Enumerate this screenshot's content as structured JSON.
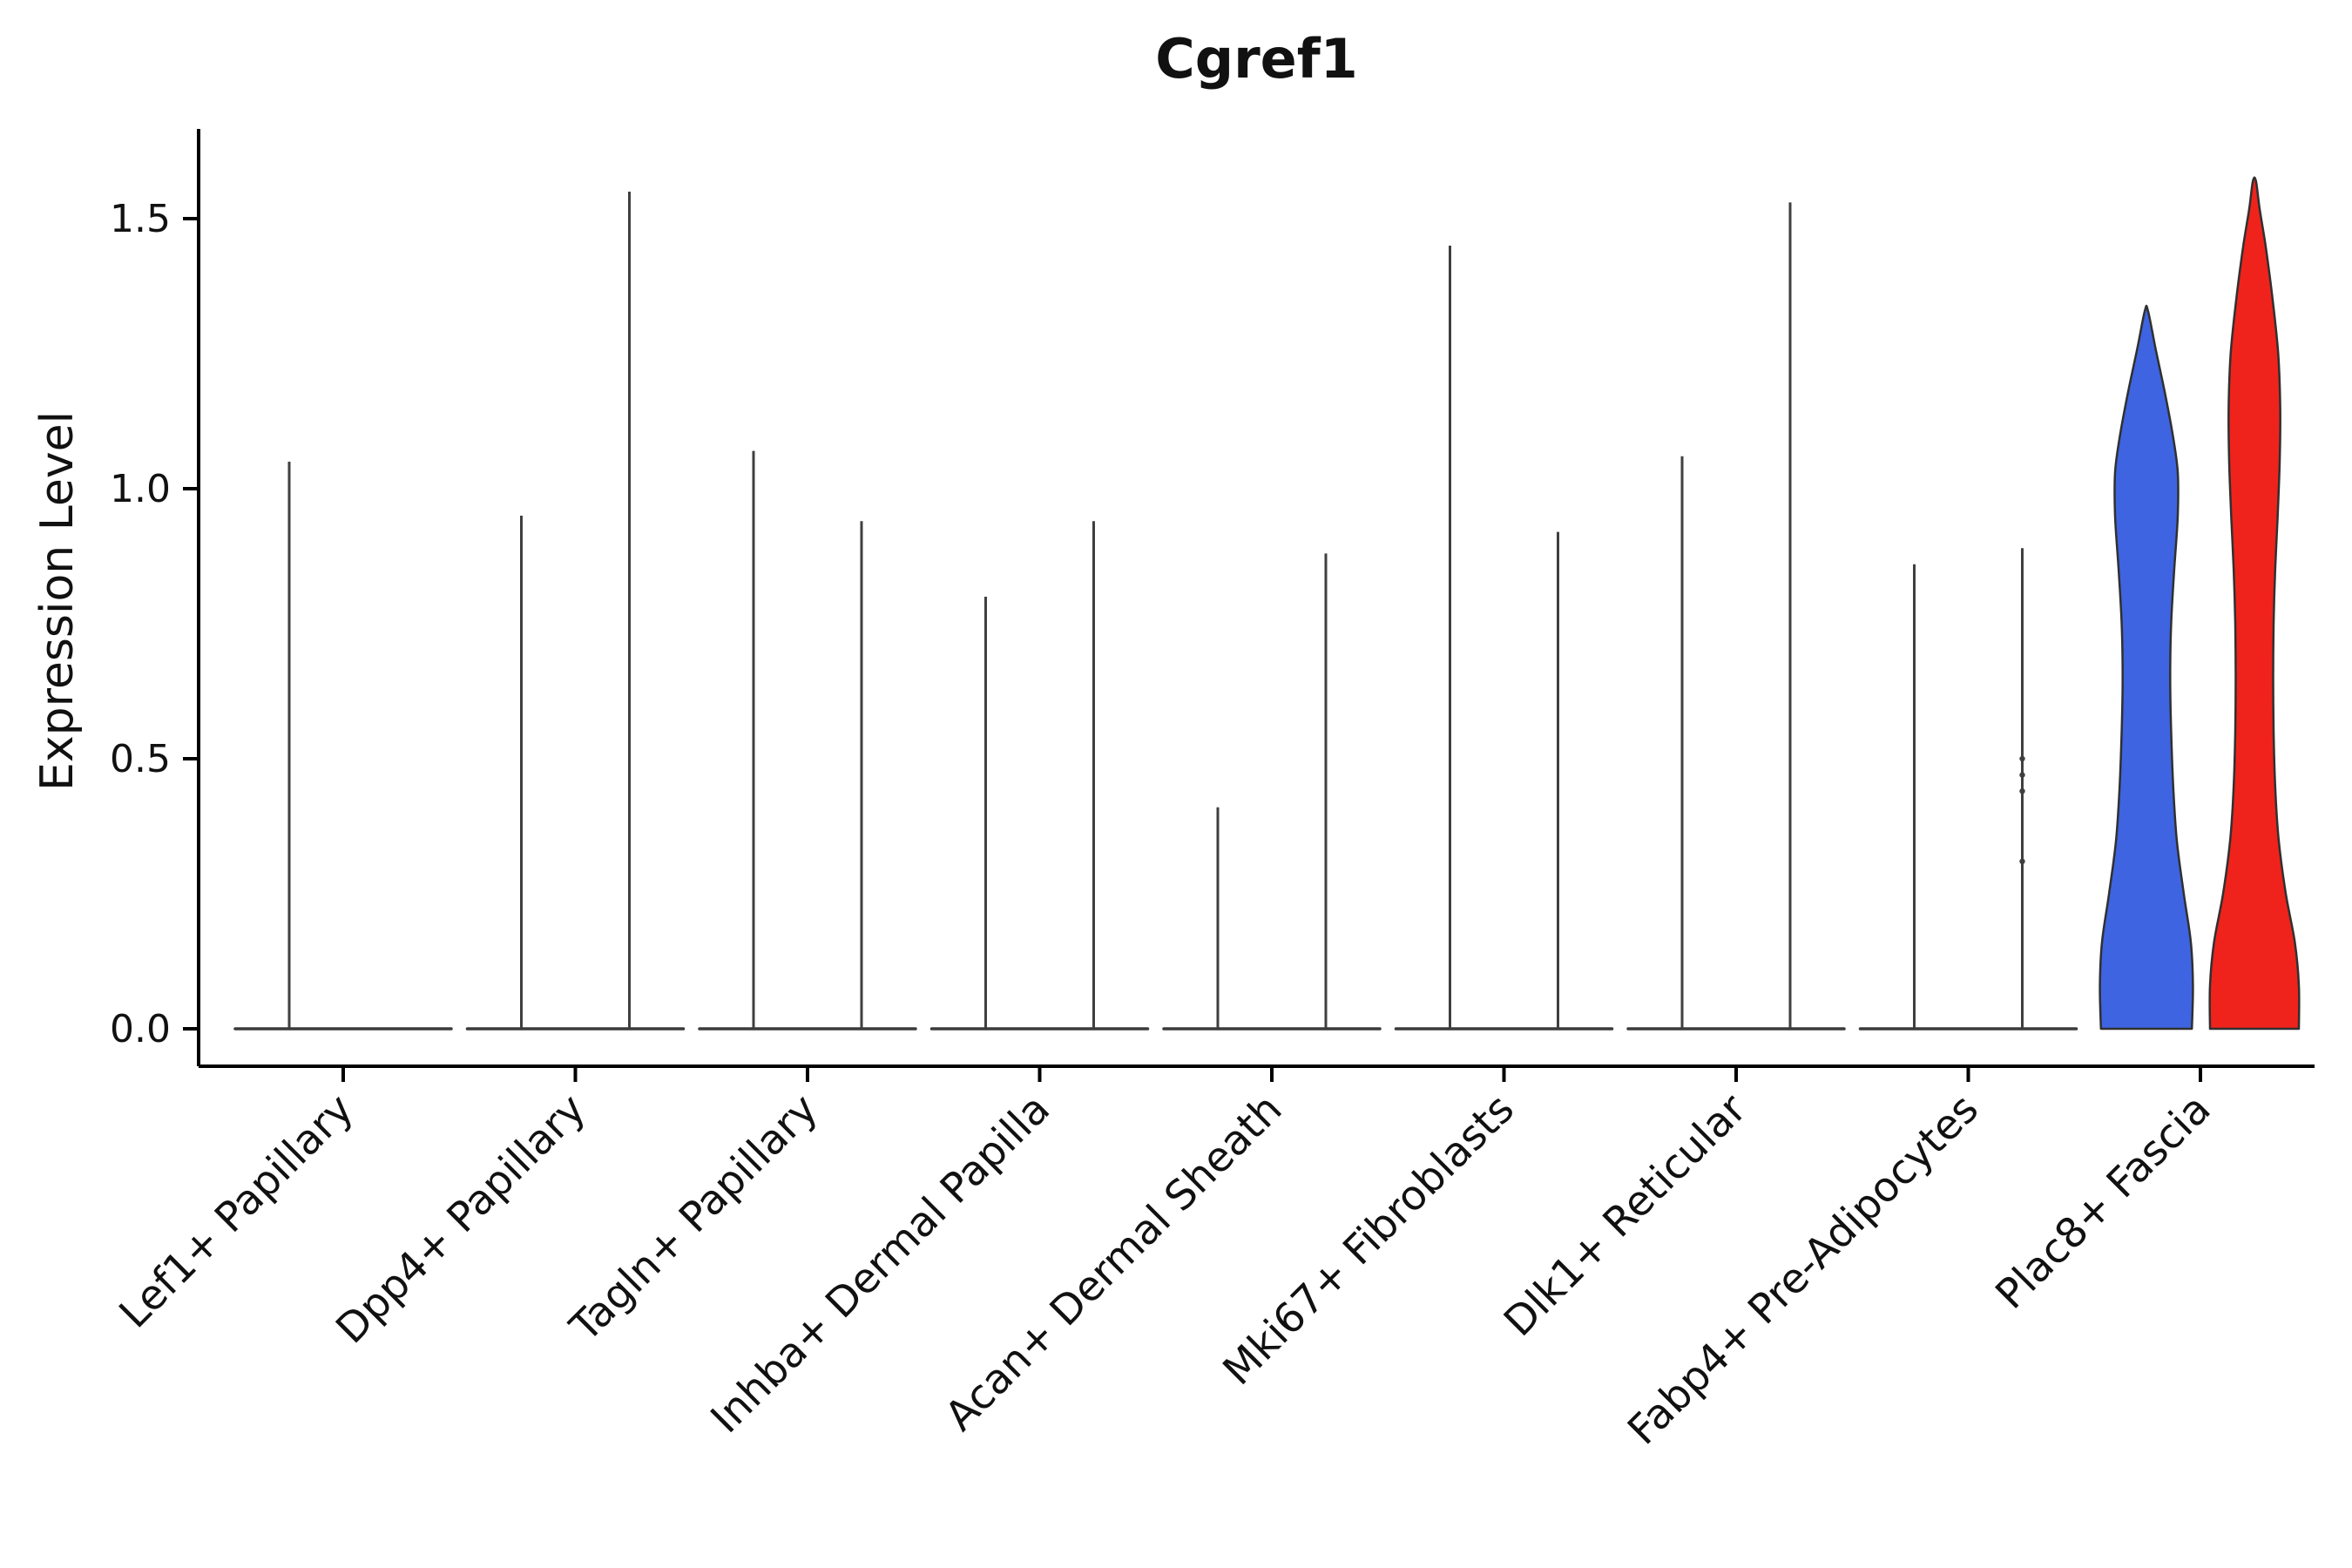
{
  "chart_data": {
    "type": "violin",
    "title": "Cgref1",
    "ylabel": "Expression Level",
    "xlabel": "",
    "ylim": [
      -0.07,
      1.66
    ],
    "yticks": [
      0.0,
      0.5,
      1.0,
      1.5
    ],
    "ytick_labels": [
      "0.0",
      "0.5",
      "1.0",
      "1.5"
    ],
    "grid": false,
    "legend": "none",
    "categories": [
      "Lef1+ Papillary",
      "Dpp4+ Papillary",
      "Tagln+ Papillary",
      "Inhba+ Dermal Papilla",
      "Acan+ Dermal Sheath",
      "Mki67+ Fibroblasts",
      "Dlk1+ Reticular",
      "Fabp4+ Pre-Adipocytes",
      "Plac8+ Fascia"
    ],
    "series": [
      {
        "name": "group_blue",
        "color": "#3E64E1",
        "max_expression": [
          1.05,
          0.95,
          1.07,
          0.8,
          0.41,
          1.45,
          1.06,
          0.86,
          1.33
        ],
        "filled_violin_category": "Plac8+ Fascia"
      },
      {
        "name": "group_red",
        "color": "#EF231C",
        "max_expression": [
          null,
          1.55,
          0.94,
          0.94,
          0.88,
          0.92,
          1.53,
          0.89,
          1.57
        ],
        "filled_violin_category": "Plac8+ Fascia"
      }
    ],
    "filled_violins": [
      {
        "category_index": 8,
        "series_index": 0,
        "max": 1.33,
        "profile": [
          [
            0.0,
            0.9
          ],
          [
            0.08,
            0.92
          ],
          [
            0.16,
            0.88
          ],
          [
            0.25,
            0.74
          ],
          [
            0.35,
            0.6
          ],
          [
            0.45,
            0.53
          ],
          [
            0.55,
            0.49
          ],
          [
            0.65,
            0.47
          ],
          [
            0.75,
            0.49
          ],
          [
            0.85,
            0.55
          ],
          [
            0.95,
            0.62
          ],
          [
            1.03,
            0.62
          ],
          [
            1.1,
            0.52
          ],
          [
            1.18,
            0.36
          ],
          [
            1.26,
            0.18
          ],
          [
            1.33,
            0.03
          ]
        ]
      },
      {
        "category_index": 8,
        "series_index": 1,
        "max": 1.57,
        "profile": [
          [
            0.0,
            0.88
          ],
          [
            0.08,
            0.88
          ],
          [
            0.16,
            0.8
          ],
          [
            0.25,
            0.62
          ],
          [
            0.35,
            0.48
          ],
          [
            0.45,
            0.41
          ],
          [
            0.55,
            0.38
          ],
          [
            0.65,
            0.37
          ],
          [
            0.75,
            0.38
          ],
          [
            0.85,
            0.41
          ],
          [
            0.95,
            0.46
          ],
          [
            1.05,
            0.5
          ],
          [
            1.15,
            0.51
          ],
          [
            1.25,
            0.47
          ],
          [
            1.35,
            0.36
          ],
          [
            1.45,
            0.22
          ],
          [
            1.52,
            0.1
          ],
          [
            1.57,
            0.03
          ]
        ]
      }
    ],
    "jitter_points": [
      {
        "category": "Fabp4+ Pre-Adipocytes",
        "category_index": 7,
        "series_index": 1,
        "values": [
          0.31,
          0.44,
          0.47,
          0.5
        ]
      }
    ],
    "colors": {
      "spike": "#3F3F3F",
      "baseline": "#3A3A3A",
      "violin_edge": "#303030",
      "axis": "#000000",
      "text": "#111111"
    }
  }
}
